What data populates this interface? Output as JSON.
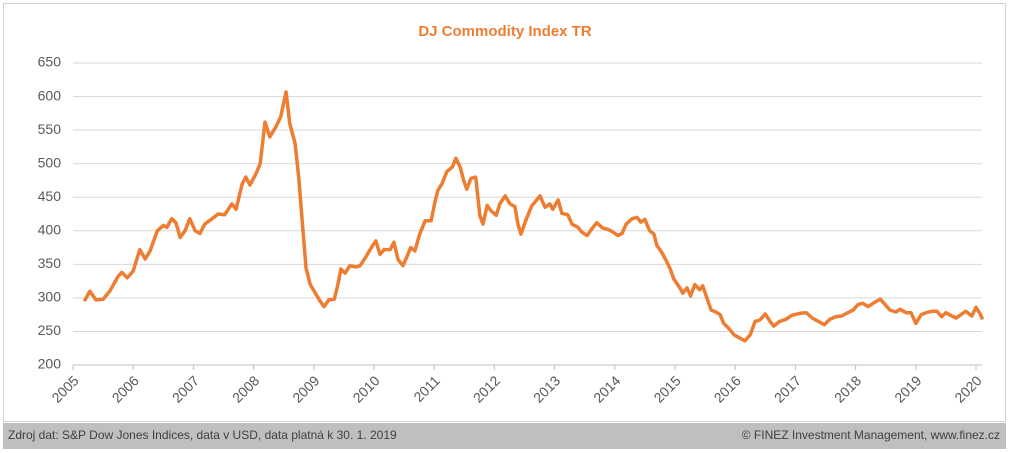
{
  "chart_data": {
    "type": "line",
    "title": "DJ Commodity Index TR",
    "x": [
      2005.2,
      2005.28,
      2005.38,
      2005.5,
      2005.61,
      2005.75,
      2005.81,
      2005.9,
      2006.0,
      2006.11,
      2006.2,
      2006.28,
      2006.4,
      2006.5,
      2006.56,
      2006.64,
      2006.71,
      2006.78,
      2006.86,
      2006.94,
      2007.03,
      2007.11,
      2007.19,
      2007.31,
      2007.41,
      2007.52,
      2007.64,
      2007.71,
      2007.81,
      2007.87,
      2007.94,
      2008.04,
      2008.11,
      2008.19,
      2008.27,
      2008.37,
      2008.45,
      2008.54,
      2008.6,
      2008.69,
      2008.75,
      2008.82,
      2008.87,
      2008.94,
      2009.02,
      2009.1,
      2009.17,
      2009.25,
      2009.34,
      2009.4,
      2009.45,
      2009.52,
      2009.6,
      2009.7,
      2009.77,
      2009.87,
      2009.97,
      2010.03,
      2010.1,
      2010.17,
      2010.27,
      2010.33,
      2010.4,
      2010.48,
      2010.55,
      2010.61,
      2010.68,
      2010.76,
      2010.85,
      2010.95,
      2011.01,
      2011.06,
      2011.13,
      2011.21,
      2011.3,
      2011.36,
      2011.43,
      2011.49,
      2011.54,
      2011.61,
      2011.69,
      2011.76,
      2011.81,
      2011.88,
      2011.94,
      2012.03,
      2012.09,
      2012.18,
      2012.26,
      2012.34,
      2012.39,
      2012.44,
      2012.52,
      2012.62,
      2012.76,
      2012.84,
      2012.92,
      2012.97,
      2013.06,
      2013.12,
      2013.22,
      2013.29,
      2013.39,
      2013.45,
      2013.54,
      2013.62,
      2013.7,
      2013.8,
      2013.89,
      2013.97,
      2014.05,
      2014.12,
      2014.19,
      2014.29,
      2014.37,
      2014.43,
      2014.5,
      2014.58,
      2014.65,
      2014.7,
      2014.78,
      2014.85,
      2014.92,
      2014.98,
      2015.08,
      2015.13,
      2015.2,
      2015.26,
      2015.33,
      2015.41,
      2015.46,
      2015.53,
      2015.6,
      2015.68,
      2015.75,
      2015.81,
      2015.9,
      2015.98,
      2016.08,
      2016.16,
      2016.25,
      2016.33,
      2016.41,
      2016.5,
      2016.58,
      2016.64,
      2016.74,
      2016.84,
      2016.94,
      2017.08,
      2017.18,
      2017.28,
      2017.38,
      2017.48,
      2017.57,
      2017.67,
      2017.77,
      2017.87,
      2017.96,
      2018.04,
      2018.12,
      2018.21,
      2018.31,
      2018.41,
      2018.49,
      2018.57,
      2018.67,
      2018.74,
      2018.84,
      2018.92,
      2019.0,
      2019.09,
      2019.17,
      2019.27,
      2019.35,
      2019.43,
      2019.5,
      2019.58,
      2019.67,
      2019.75,
      2019.83,
      2019.93,
      2020.0,
      2020.07,
      2020.1
    ],
    "values": [
      297,
      310,
      297,
      298,
      310,
      332,
      338,
      330,
      340,
      372,
      358,
      370,
      400,
      408,
      405,
      418,
      412,
      390,
      400,
      418,
      400,
      396,
      410,
      418,
      425,
      424,
      440,
      432,
      470,
      480,
      468,
      485,
      500,
      562,
      540,
      555,
      570,
      607,
      560,
      530,
      480,
      400,
      345,
      320,
      308,
      296,
      287,
      297,
      298,
      320,
      343,
      337,
      348,
      346,
      348,
      362,
      377,
      385,
      365,
      372,
      372,
      383,
      357,
      348,
      362,
      375,
      370,
      395,
      415,
      415,
      442,
      460,
      470,
      488,
      495,
      508,
      495,
      475,
      462,
      478,
      480,
      422,
      410,
      438,
      430,
      423,
      440,
      452,
      440,
      436,
      410,
      395,
      415,
      437,
      452,
      435,
      440,
      432,
      446,
      426,
      424,
      410,
      405,
      398,
      393,
      403,
      412,
      404,
      402,
      398,
      393,
      396,
      410,
      418,
      420,
      413,
      417,
      400,
      395,
      378,
      368,
      356,
      343,
      328,
      315,
      307,
      315,
      303,
      320,
      312,
      318,
      300,
      282,
      279,
      275,
      262,
      254,
      245,
      240,
      236,
      245,
      265,
      267,
      276,
      265,
      258,
      265,
      268,
      274,
      277,
      278,
      270,
      265,
      260,
      268,
      272,
      273,
      278,
      282,
      290,
      292,
      287,
      293,
      298,
      290,
      282,
      279,
      283,
      278,
      278,
      262,
      275,
      278,
      280,
      280,
      272,
      278,
      274,
      270,
      275,
      280,
      273,
      286,
      276,
      270
    ],
    "color": "#ED7D31",
    "xlim": [
      2005,
      2020.1
    ],
    "xticks": [
      2005,
      2006,
      2007,
      2008,
      2009,
      2010,
      2011,
      2012,
      2013,
      2014,
      2015,
      2016,
      2017,
      2018,
      2019,
      2020
    ],
    "ylim": [
      200,
      650
    ],
    "yticks": [
      200,
      250,
      300,
      350,
      400,
      450,
      500,
      550,
      600,
      650
    ],
    "grid": true
  },
  "footer": {
    "source": "Zdroj dat: S&P Dow Jones Indices, data v USD, data platná k 30. 1. 2019",
    "credit": "© FINEZ Investment Management, www.finez.cz"
  }
}
